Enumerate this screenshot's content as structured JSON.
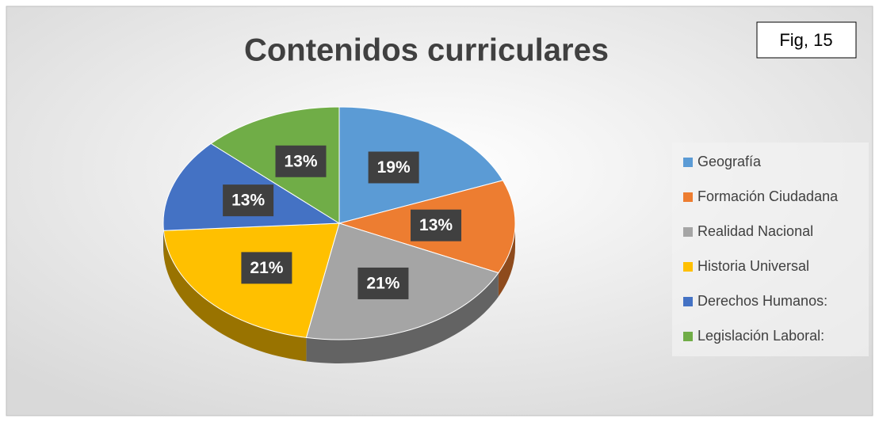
{
  "chart_data": {
    "type": "pie",
    "title": "Contenidos curriculares",
    "annotation": "Fig, 15",
    "categories": [
      "Geografía",
      "Formación Ciudadana",
      "Realidad Nacional",
      "Historia Universal",
      "Derechos Humanos:",
      "Legislación Laboral:"
    ],
    "values": [
      19,
      13,
      21,
      21,
      13,
      13
    ],
    "value_labels": [
      "19%",
      "13%",
      "21%",
      "21%",
      "13%",
      "13%"
    ],
    "colors": [
      "#5b9bd5",
      "#ed7d31",
      "#a5a5a5",
      "#ffc000",
      "#4472c4",
      "#70ad47"
    ],
    "legend": "right"
  }
}
